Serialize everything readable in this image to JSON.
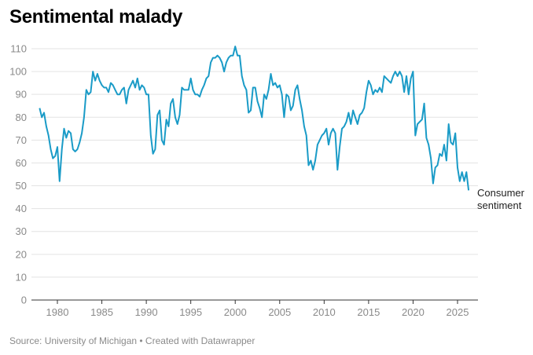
{
  "chart_data": {
    "type": "line",
    "title": "Sentimental malady",
    "source": "Source: University of Michigan • Created with Datawrapper",
    "xlabel": "",
    "ylabel": "",
    "xlim": [
      1978,
      2026.3
    ],
    "ylim": [
      0,
      110
    ],
    "xticks": [
      "1980",
      "1985",
      "1990",
      "1995",
      "2000",
      "2005",
      "2010",
      "2015",
      "2020",
      "2025"
    ],
    "yticks": [
      "0",
      "10",
      "20",
      "30",
      "40",
      "50",
      "60",
      "70",
      "80",
      "90",
      "100",
      "110"
    ],
    "grid": true,
    "line_color": "#1a9bc7",
    "series": [
      {
        "name": "Consumer sentiment",
        "start": 1978,
        "step": 0.25,
        "values": [
          84,
          80,
          82,
          76,
          72,
          66,
          62,
          63,
          67,
          52,
          66,
          75,
          71,
          74,
          73,
          66,
          65,
          66,
          69,
          73,
          80,
          92,
          90,
          91,
          100,
          96,
          99,
          96,
          94,
          93,
          93,
          91,
          95,
          94,
          92,
          90,
          90,
          92,
          93,
          86,
          92,
          94,
          96,
          93,
          97,
          92,
          94,
          93,
          90,
          90,
          72,
          64,
          66,
          81,
          83,
          70,
          68,
          79,
          76,
          86,
          88,
          80,
          77,
          81,
          93,
          92,
          92,
          92,
          97,
          92,
          90,
          90,
          89,
          92,
          94,
          97,
          98,
          104,
          106,
          106,
          107,
          106,
          104,
          100,
          104,
          106,
          107,
          107,
          111,
          107,
          107,
          98,
          94,
          92,
          82,
          83,
          93,
          93,
          87,
          84,
          80,
          90,
          88,
          92,
          99,
          94,
          95,
          93,
          94,
          90,
          80,
          90,
          89,
          83,
          85,
          92,
          94,
          88,
          83,
          76,
          72,
          59,
          61,
          57,
          61,
          68,
          70,
          72,
          73,
          75,
          68,
          73,
          75,
          73,
          57,
          67,
          75,
          76,
          78,
          82,
          77,
          83,
          80,
          77,
          81,
          82,
          84,
          91,
          96,
          94,
          90,
          92,
          91,
          93,
          91,
          98,
          97,
          96,
          95,
          98,
          100,
          98,
          100,
          98,
          91,
          98,
          90,
          97,
          100,
          72,
          77,
          78,
          79,
          86,
          71,
          68,
          62,
          51,
          58,
          59,
          64,
          63,
          68,
          61,
          77,
          69,
          68,
          73,
          58,
          52,
          56,
          52,
          56,
          48
        ]
      }
    ]
  }
}
